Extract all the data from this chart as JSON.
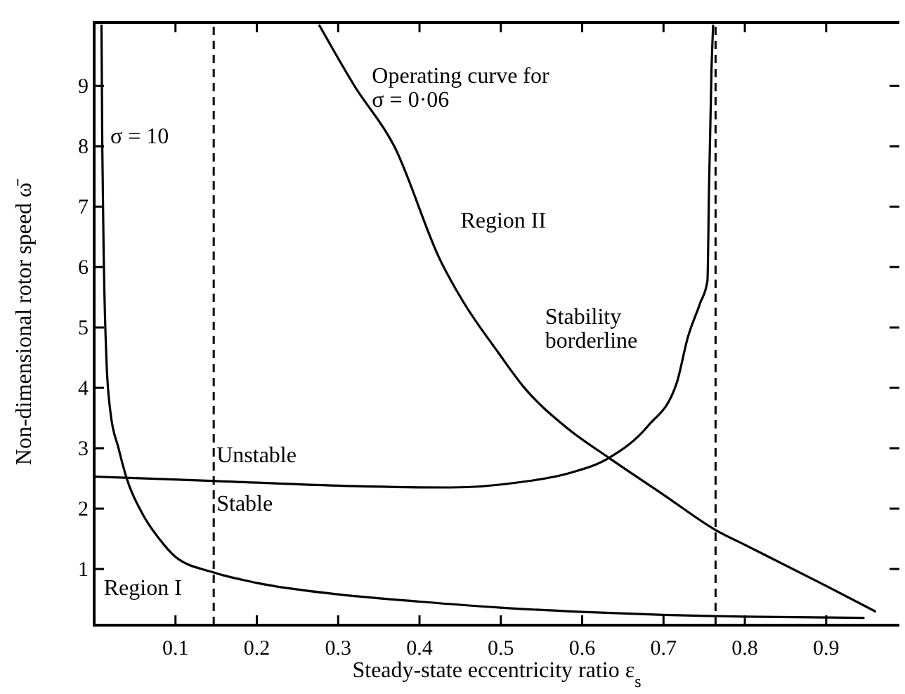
{
  "chart_data": {
    "type": "line",
    "xlabel": "Steady-state eccentricity ratio ε$_{s}$",
    "ylabel": "Non-dimensional rotor speed ω̄",
    "xlim": [
      0,
      0.99
    ],
    "ylim": [
      0.07,
      10.05
    ],
    "xticks": [
      0.1,
      0.2,
      0.3,
      0.4,
      0.5,
      0.6,
      0.7,
      0.8,
      0.9
    ],
    "yticks": [
      1,
      2,
      3,
      4,
      5,
      6,
      7,
      8,
      9
    ],
    "grid": false,
    "marker": "none",
    "series": [
      {
        "color": "#000000",
        "x": [
          0.009,
          0.01,
          0.012,
          0.015,
          0.02,
          0.03,
          0.04,
          0.06,
          0.08,
          0.1,
          0.145,
          0.2,
          0.3,
          0.4,
          0.5,
          0.6,
          0.7,
          0.8,
          0.946
        ],
        "values": [
          10,
          8,
          6,
          4.5,
          3.6,
          3.0,
          2.5,
          1.9,
          1.5,
          1.2,
          0.95,
          0.77,
          0.58,
          0.46,
          0.36,
          0.29,
          0.24,
          0.21,
          0.19
        ]
      },
      {
        "color": "#000000",
        "x": [
          0.277,
          0.32,
          0.369,
          0.426,
          0.454,
          0.496,
          0.529,
          0.58,
          0.633,
          0.7,
          0.766,
          0.8,
          0.9,
          0.96
        ],
        "values": [
          10,
          9,
          8,
          6.1,
          5.42,
          4.6,
          4.0,
          3.35,
          2.84,
          2.23,
          1.63,
          1.4,
          0.72,
          0.3
        ]
      },
      {
        "color": "#000000",
        "x": [
          0,
          0.145,
          0.3,
          0.438,
          0.525,
          0.582,
          0.633,
          0.681,
          0.716,
          0.73,
          0.745,
          0.754,
          0.756,
          0.759,
          0.761
        ],
        "values": [
          2.53,
          2.46,
          2.38,
          2.35,
          2.44,
          2.58,
          2.84,
          3.37,
          4.07,
          4.84,
          5.4,
          5.77,
          7.33,
          9.26,
          10
        ]
      }
    ],
    "ref_lines": [
      {
        "axis": "x",
        "value": 0.147,
        "line_style": "dashed"
      },
      {
        "axis": "x",
        "value": 0.764,
        "line_style": "dashed"
      }
    ],
    "annotations": [
      "σ = 10",
      "Operating curve for\nσ = 0·06",
      "Region II",
      "Stability\nborderline",
      "Unstable",
      "Stable",
      "Region I"
    ]
  }
}
